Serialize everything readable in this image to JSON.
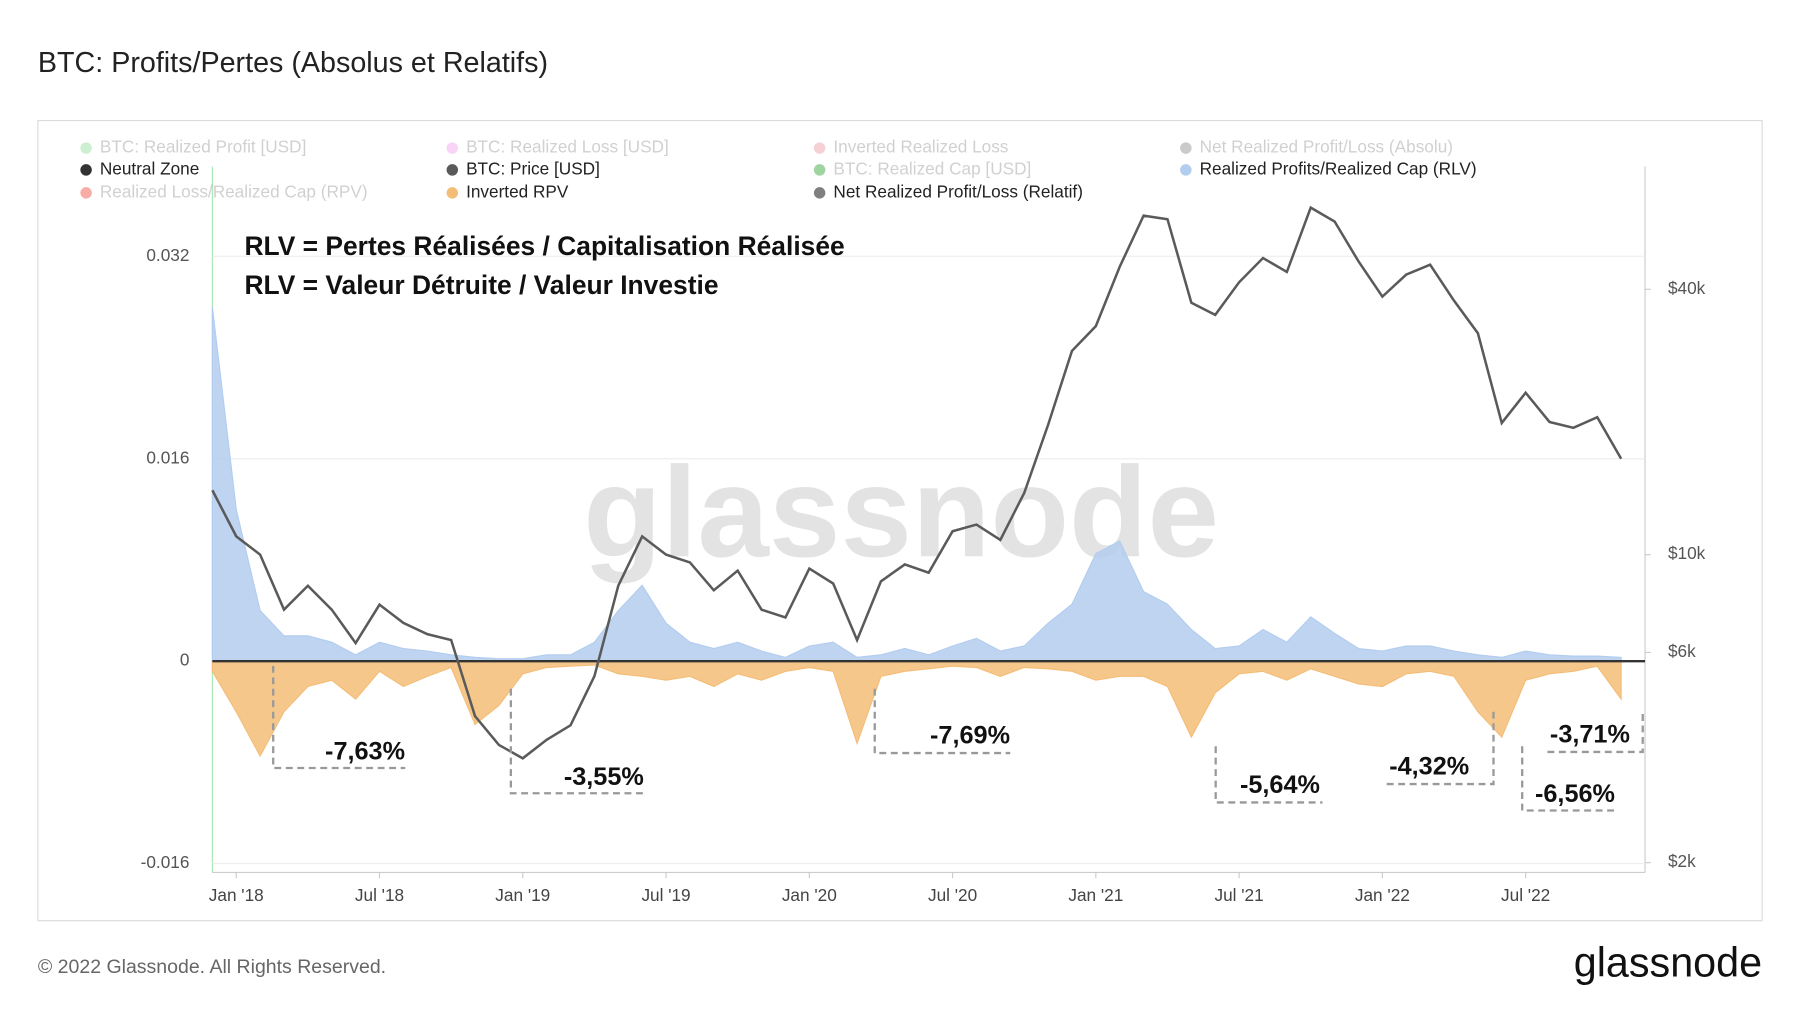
{
  "chart_data": {
    "type": "combo",
    "title": "BTC: Profits/Pertes (Absolus et Relatifs)",
    "annotations": [
      "RLV = Pertes Réalisées / Capitalisation Réalisée",
      "RLV = Valeur Détruite / Valeur Investie"
    ],
    "callouts": [
      "-7,63%",
      "-3,55%",
      "-7,69%",
      "-5,64%",
      "-4,32%",
      "-6,56%",
      "-3,71%"
    ],
    "watermark": "glassnode",
    "x": [
      "2017-12",
      "2018-01",
      "2018-02",
      "2018-03",
      "2018-04",
      "2018-05",
      "2018-06",
      "2018-07",
      "2018-08",
      "2018-09",
      "2018-10",
      "2018-11",
      "2018-12",
      "2019-01",
      "2019-02",
      "2019-03",
      "2019-04",
      "2019-05",
      "2019-06",
      "2019-07",
      "2019-08",
      "2019-09",
      "2019-10",
      "2019-11",
      "2019-12",
      "2020-01",
      "2020-02",
      "2020-03",
      "2020-04",
      "2020-05",
      "2020-06",
      "2020-07",
      "2020-08",
      "2020-09",
      "2020-10",
      "2020-11",
      "2020-12",
      "2021-01",
      "2021-02",
      "2021-03",
      "2021-04",
      "2021-05",
      "2021-06",
      "2021-07",
      "2021-08",
      "2021-09",
      "2021-10",
      "2021-11",
      "2021-12",
      "2022-01",
      "2022-02",
      "2022-03",
      "2022-04",
      "2022-05",
      "2022-06",
      "2022-07",
      "2022-08",
      "2022-09",
      "2022-10",
      "2022-11"
    ],
    "xlim": [
      "2017-12",
      "2022-12"
    ],
    "xticks": [
      {
        "value": "2018-01",
        "label": "Jan '18"
      },
      {
        "value": "2018-07",
        "label": "Jul '18"
      },
      {
        "value": "2019-01",
        "label": "Jan '19"
      },
      {
        "value": "2019-07",
        "label": "Jul '19"
      },
      {
        "value": "2020-01",
        "label": "Jan '20"
      },
      {
        "value": "2020-07",
        "label": "Jul '20"
      },
      {
        "value": "2021-01",
        "label": "Jan '21"
      },
      {
        "value": "2021-07",
        "label": "Jul '21"
      },
      {
        "value": "2022-01",
        "label": "Jan '22"
      },
      {
        "value": "2022-07",
        "label": "Jul '22"
      }
    ],
    "ylim": [
      -0.0167,
      0.0391
    ],
    "yticks": [
      -0.016,
      0,
      0.016,
      0.032
    ],
    "y2lim": [
      1900,
      76000
    ],
    "y2log": true,
    "y2ticks": [
      {
        "value": 2000,
        "label": "$2k"
      },
      {
        "value": 6000,
        "label": "$6k"
      },
      {
        "value": 10000,
        "label": "$10k"
      },
      {
        "value": 40000,
        "label": "$40k"
      }
    ],
    "grid": true,
    "series": [
      {
        "name": "BTC: Realized Profit [USD]",
        "color": "#8fdc9d",
        "active": false
      },
      {
        "name": "BTC: Realized Loss [USD]",
        "color": "#f29ef0",
        "active": false
      },
      {
        "name": "Inverted Realized Loss",
        "color": "#ec9aa2",
        "active": false
      },
      {
        "name": "Net Realized Profit/Loss (Absolu)",
        "color": "#8c8c8c",
        "active": false
      },
      {
        "name": "Neutral Zone",
        "color": "#333333",
        "active": true,
        "style": "hline",
        "value": 0
      },
      {
        "name": "BTC: Price [USD]",
        "color": "#5a5a5a",
        "active": true,
        "style": "line",
        "axis": "y2",
        "values": [
          14000,
          11000,
          10000,
          7500,
          8500,
          7500,
          6300,
          7700,
          7000,
          6600,
          6400,
          4300,
          3700,
          3450,
          3800,
          4100,
          5300,
          8500,
          11000,
          10000,
          9600,
          8300,
          9200,
          7500,
          7200,
          9300,
          8600,
          6400,
          8700,
          9500,
          9100,
          11300,
          11700,
          10800,
          13800,
          19700,
          29000,
          33000,
          45000,
          58800,
          57700,
          37300,
          35000,
          41500,
          47100,
          43800,
          61300,
          57000,
          46300,
          38500,
          43200,
          45500,
          37700,
          31800,
          19900,
          23300,
          20000,
          19400,
          20500,
          16500
        ]
      },
      {
        "name": "BTC: Realized Cap [USD]",
        "color": "#2ca02c",
        "active": false
      },
      {
        "name": "Realized Profits/Realized Cap (RLV)",
        "color": "#b3cdef",
        "active": true,
        "style": "area",
        "values": [
          0.028,
          0.012,
          0.004,
          0.002,
          0.002,
          0.0015,
          0.0005,
          0.0015,
          0.001,
          0.0008,
          0.0005,
          0.0003,
          0.0002,
          0.0002,
          0.0005,
          0.0005,
          0.0015,
          0.004,
          0.006,
          0.003,
          0.0015,
          0.001,
          0.0015,
          0.0008,
          0.0003,
          0.0012,
          0.0015,
          0.0003,
          0.0005,
          0.001,
          0.0005,
          0.0012,
          0.0018,
          0.0008,
          0.0012,
          0.003,
          0.0045,
          0.0085,
          0.0095,
          0.0055,
          0.0045,
          0.0025,
          0.001,
          0.0012,
          0.0025,
          0.0015,
          0.0035,
          0.0022,
          0.001,
          0.0008,
          0.0012,
          0.0012,
          0.0008,
          0.0005,
          0.0003,
          0.0008,
          0.0005,
          0.0004,
          0.0004,
          0.0003
        ]
      },
      {
        "name": "Realized Loss/Realized Cap (RPV)",
        "color": "#ef4b3b",
        "active": false
      },
      {
        "name": "Inverted RPV",
        "color": "#f4bd77",
        "active": true,
        "style": "area",
        "values": [
          -0.0008,
          -0.004,
          -0.0075,
          -0.004,
          -0.002,
          -0.0015,
          -0.003,
          -0.0008,
          -0.002,
          -0.0012,
          -0.0005,
          -0.005,
          -0.0035,
          -0.001,
          -0.0005,
          -0.0004,
          -0.0003,
          -0.001,
          -0.0012,
          -0.0015,
          -0.0012,
          -0.002,
          -0.001,
          -0.0015,
          -0.0008,
          -0.0005,
          -0.0008,
          -0.0065,
          -0.0012,
          -0.0008,
          -0.0006,
          -0.0004,
          -0.0005,
          -0.0012,
          -0.0005,
          -0.0006,
          -0.0008,
          -0.0015,
          -0.0012,
          -0.0012,
          -0.002,
          -0.006,
          -0.0025,
          -0.001,
          -0.0008,
          -0.0015,
          -0.0006,
          -0.0012,
          -0.0018,
          -0.002,
          -0.001,
          -0.0008,
          -0.0012,
          -0.004,
          -0.006,
          -0.0015,
          -0.001,
          -0.0008,
          -0.0004,
          -0.003
        ]
      },
      {
        "name": "Net Realized Profit/Loss (Relatif)",
        "color": "#7f7f7f",
        "active": true
      }
    ]
  },
  "footer": {
    "copyright": "© 2022 Glassnode. All Rights Reserved.",
    "logo": "glassnode"
  }
}
